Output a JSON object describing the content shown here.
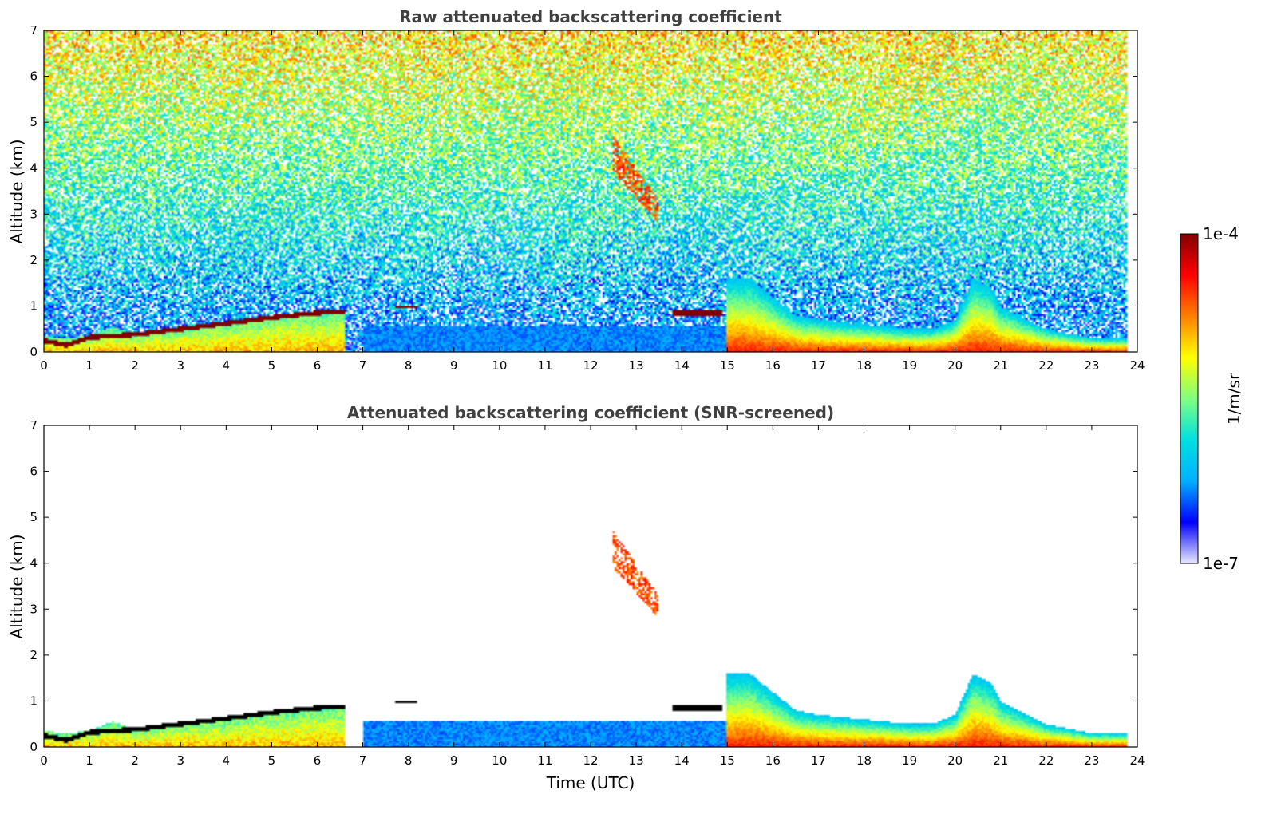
{
  "chart_data": [
    {
      "type": "heatmap",
      "title": "Raw attenuated backscattering coefficient",
      "xlabel": "",
      "ylabel": "Altitude (km)",
      "xlim": [
        0,
        24
      ],
      "ylim": [
        0,
        7
      ],
      "xticks": [
        "0",
        "1",
        "2",
        "3",
        "4",
        "5",
        "6",
        "7",
        "8",
        "9",
        "10",
        "11",
        "12",
        "13",
        "14",
        "15",
        "16",
        "17",
        "18",
        "19",
        "20",
        "21",
        "22",
        "23",
        "24"
      ],
      "yticks": [
        "0",
        "1",
        "2",
        "3",
        "4",
        "5",
        "6",
        "7"
      ],
      "noise": "dense noise field at all altitudes (log value increasing with altitude)",
      "features": [
        {
          "kind": "boundary_layer",
          "times": [
            0,
            0.5,
            1,
            1.5,
            2,
            3,
            4,
            5,
            6,
            6.6
          ],
          "tops_km": [
            0.35,
            0.3,
            0.35,
            0.55,
            0.4,
            0.55,
            0.65,
            0.8,
            0.88,
            0.9
          ],
          "level": 0.7
        },
        {
          "kind": "cloud",
          "times": [
            0,
            0.5,
            1,
            2,
            3,
            4,
            5,
            6,
            6.6
          ],
          "alt_km": [
            0.25,
            0.15,
            0.32,
            0.38,
            0.5,
            0.62,
            0.75,
            0.85,
            0.88
          ],
          "thickness_km": 0.1,
          "level": 1.0
        },
        {
          "kind": "patch",
          "t": [
            7.7,
            8.2
          ],
          "alt_km": [
            0.95,
            1.0
          ],
          "level": 1.0
        },
        {
          "kind": "patch",
          "t": [
            13.8,
            14.9
          ],
          "alt_km": [
            0.78,
            0.92
          ],
          "level": 1.0
        },
        {
          "kind": "virga",
          "t": [
            12.5,
            13.5
          ],
          "alt_km": [
            2.8,
            3.9
          ],
          "level": 0.8
        },
        {
          "kind": "aerosol",
          "times": [
            15,
            15.5,
            16,
            16.5,
            17,
            18,
            19,
            19.5,
            20,
            20.4,
            20.8,
            21,
            21.5,
            22,
            22.5,
            23,
            23.8
          ],
          "tops_km": [
            1.6,
            1.6,
            1.2,
            0.8,
            0.7,
            0.6,
            0.5,
            0.5,
            0.7,
            1.6,
            1.4,
            1.0,
            0.75,
            0.5,
            0.4,
            0.3,
            0.3
          ],
          "level": 0.85
        },
        {
          "kind": "low_blue_layer",
          "t": [
            7,
            15
          ],
          "alt_km": [
            0,
            0.55
          ],
          "level": 0.22
        }
      ]
    },
    {
      "type": "heatmap",
      "title": "Attenuated backscattering coefficient (SNR-screened)",
      "xlabel": "Time (UTC)",
      "ylabel": "Altitude (km)",
      "xlim": [
        0,
        24
      ],
      "ylim": [
        0,
        7
      ],
      "xticks": [
        "0",
        "1",
        "2",
        "3",
        "4",
        "5",
        "6",
        "7",
        "8",
        "9",
        "10",
        "11",
        "12",
        "13",
        "14",
        "15",
        "16",
        "17",
        "18",
        "19",
        "20",
        "21",
        "22",
        "23",
        "24"
      ],
      "yticks": [
        "0",
        "1",
        "2",
        "3",
        "4",
        "5",
        "6",
        "7"
      ],
      "noise": "screened out (white)",
      "features": [
        {
          "kind": "boundary_layer",
          "times": [
            0,
            0.5,
            1,
            1.5,
            2,
            3,
            4,
            5,
            6,
            6.6
          ],
          "tops_km": [
            0.35,
            0.3,
            0.35,
            0.55,
            0.4,
            0.55,
            0.65,
            0.8,
            0.88,
            0.9
          ],
          "level": 0.7
        },
        {
          "kind": "cloud",
          "times": [
            0,
            0.5,
            1,
            2,
            3,
            4,
            5,
            6,
            6.6
          ],
          "alt_km": [
            0.25,
            0.15,
            0.32,
            0.38,
            0.5,
            0.62,
            0.75,
            0.85,
            0.88
          ],
          "thickness_km": 0.1,
          "level": 1.05
        },
        {
          "kind": "patch",
          "t": [
            7.7,
            8.2
          ],
          "alt_km": [
            0.95,
            1.0
          ],
          "level": 1.05
        },
        {
          "kind": "patch",
          "t": [
            13.8,
            14.9
          ],
          "alt_km": [
            0.78,
            0.92
          ],
          "level": 1.05
        },
        {
          "kind": "virga",
          "t": [
            12.5,
            13.5
          ],
          "alt_km": [
            2.8,
            3.9
          ],
          "level": 0.8
        },
        {
          "kind": "aerosol",
          "times": [
            15,
            15.5,
            16,
            16.5,
            17,
            18,
            19,
            19.5,
            20,
            20.4,
            20.8,
            21,
            21.5,
            22,
            22.5,
            23,
            23.8
          ],
          "tops_km": [
            1.6,
            1.6,
            1.2,
            0.8,
            0.7,
            0.6,
            0.5,
            0.5,
            0.7,
            1.6,
            1.4,
            1.0,
            0.75,
            0.5,
            0.4,
            0.3,
            0.3
          ],
          "level": 0.85
        },
        {
          "kind": "low_blue_layer",
          "t": [
            7,
            15
          ],
          "alt_km": [
            0,
            0.55
          ],
          "level": 0.22
        }
      ]
    }
  ],
  "colorbar": {
    "label": "1/m/sr",
    "min_label": "1e-7",
    "max_label": "1e-4",
    "scale": "log",
    "colormap": "jet",
    "stops": [
      "#e8e8ff",
      "#0000ff",
      "#00b0ff",
      "#00e0e0",
      "#80ff80",
      "#ffff00",
      "#ff8000",
      "#ff0000",
      "#800000"
    ]
  }
}
